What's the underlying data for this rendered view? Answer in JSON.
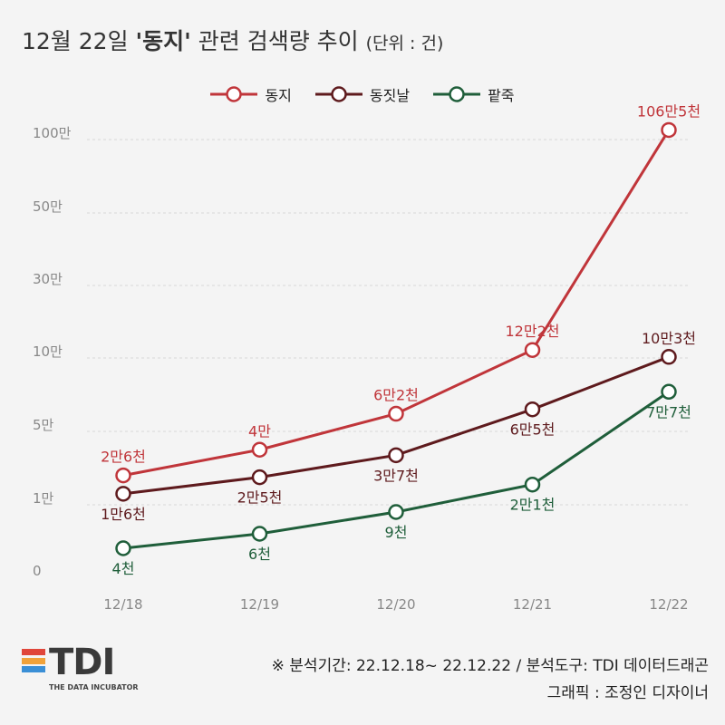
{
  "title": {
    "prefix": "12월 22일 ",
    "keyword": "'동지'",
    "suffix": " 관련 검색량 추이 ",
    "unit": "(단위 : 건)"
  },
  "colors": {
    "동지": "#c0353a",
    "동짓날": "#5e1a1d",
    "팥죽": "#1f5e3a",
    "grid": "#d8d8d8",
    "tick": "#888888"
  },
  "chart_data": {
    "type": "line",
    "scale": "non-linear (banded y-axis)",
    "categories": [
      "12/18",
      "12/19",
      "12/20",
      "12/21",
      "12/22"
    ],
    "y_ticks": [
      "0",
      "1만",
      "5만",
      "10만",
      "30만",
      "50만",
      "100만"
    ],
    "y_tick_values": [
      0,
      10000,
      50000,
      100000,
      300000,
      500000,
      1000000
    ],
    "grid": "horizontal dashed",
    "legend_position": "top-center",
    "series": [
      {
        "name": "동지",
        "values": [
          26000,
          40000,
          62000,
          122000,
          1065000
        ],
        "labels": [
          "2만6천",
          "4만",
          "6만2천",
          "12만2천",
          "106만5천"
        ],
        "label_side": [
          "above",
          "above",
          "above",
          "above",
          "above"
        ]
      },
      {
        "name": "동짓날",
        "values": [
          16000,
          25000,
          37000,
          65000,
          103000
        ],
        "labels": [
          "1만6천",
          "2만5천",
          "3만7천",
          "6만5천",
          "10만3천"
        ],
        "label_side": [
          "below",
          "below",
          "below",
          "below",
          "above"
        ]
      },
      {
        "name": "팥죽",
        "values": [
          4000,
          6000,
          9000,
          21000,
          77000
        ],
        "labels": [
          "4천",
          "6천",
          "9천",
          "2만1천",
          "7만7천"
        ],
        "label_side": [
          "below",
          "below",
          "below",
          "below",
          "below"
        ]
      }
    ]
  },
  "footer": {
    "logo_text": "TDI",
    "logo_subtitle": "THE DATA INCUBATOR",
    "logo_colors": [
      "#e0463a",
      "#f0a23a",
      "#3a8fd6"
    ],
    "note_line1": "※ 분석기간: 22.12.18~ 22.12.22 / 분석도구: TDI 데이터드래곤",
    "note_line2": "그래픽 : 조정인 디자이너"
  }
}
